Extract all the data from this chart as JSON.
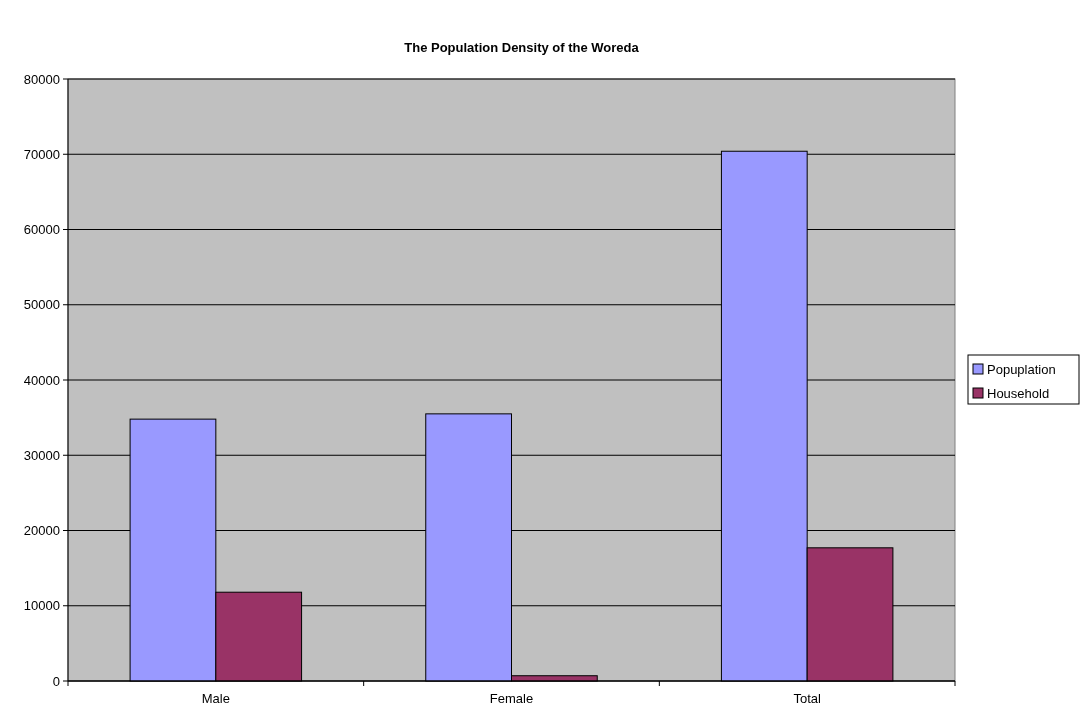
{
  "chart_data": {
    "type": "bar",
    "title": "The Population Density of the Woreda",
    "categories": [
      "Male",
      "Female",
      "Total"
    ],
    "series": [
      {
        "name": "Popuplation",
        "color": "#9999ff",
        "values": [
          34800,
          35500,
          70400
        ]
      },
      {
        "name": "Household",
        "color": "#993366",
        "values": [
          11800,
          700,
          17700
        ]
      }
    ],
    "ylim": [
      0,
      80000
    ],
    "yticks": [
      0,
      10000,
      20000,
      30000,
      40000,
      50000,
      60000,
      70000,
      80000
    ],
    "grid": "y",
    "legend": "right"
  }
}
